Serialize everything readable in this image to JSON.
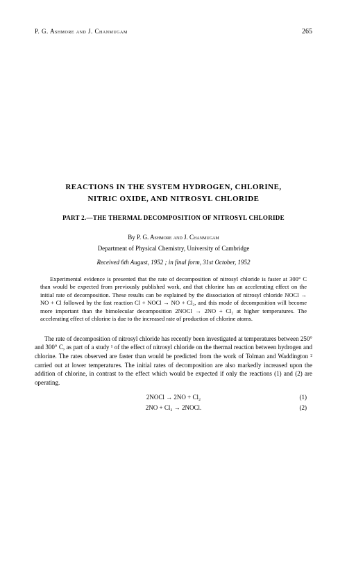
{
  "header": {
    "authors": "P. G. Ashmore and J. Chanmugam",
    "page_number": "265"
  },
  "title_line1": "REACTIONS  IN  THE  SYSTEM  HYDROGEN,  CHLORINE,",
  "title_line2": "NITRIC  OXIDE,  AND  NITROSYL  CHLORIDE",
  "subtitle": "PART 2.—THE THERMAL DECOMPOSITION OF NITROSYL CHLORIDE",
  "byline_prefix": "By ",
  "byline_authors": "P. G. Ashmore and J. Chanmugam",
  "affiliation": "Department of Physical Chemistry, University of Cambridge",
  "received": "Received 6th August, 1952 ;  in final form, 31st October, 1952",
  "abstract": "Experimental evidence is presented that the rate of decomposition of nitrosyl chloride is faster at 300° C than would be expected from previously published work, and that chlorine has an accelerating effect on the initial rate of decomposition. These results can be explained by the dissociation of nitrosyl chloride NOCl → NO + Cl followed by the fast reaction Cl + NOCl → NO + Cl₂, and this mode of decomposition will become more important than the bimolecular decomposition 2NOCl → 2NO + Cl₂ at higher temperatures. The accelerating effect of chlorine is due to the increased rate of production of chlorine atoms.",
  "body_paragraph": "The rate of decomposition of nitrosyl chloride has recently been investigated at temperatures between 250° and 300° C, as part of a study ¹ of the effect of nitrosyl chloride on the thermal reaction between hydrogen and chlorine. The rates observed are faster than would be predicted from the work of Tolman and Waddington ² carried out at lower temperatures. The initial rates of decomposition are also markedly increased upon the addition of chlorine, in contrast to the effect which would be expected if only the reactions (1) and (2) are operating.",
  "equations": [
    {
      "formula": "2NOCl → 2NO + Cl₂",
      "number": "(1)"
    },
    {
      "formula": "2NO + Cl₂ → 2NOCl.",
      "number": "(2)"
    }
  ]
}
